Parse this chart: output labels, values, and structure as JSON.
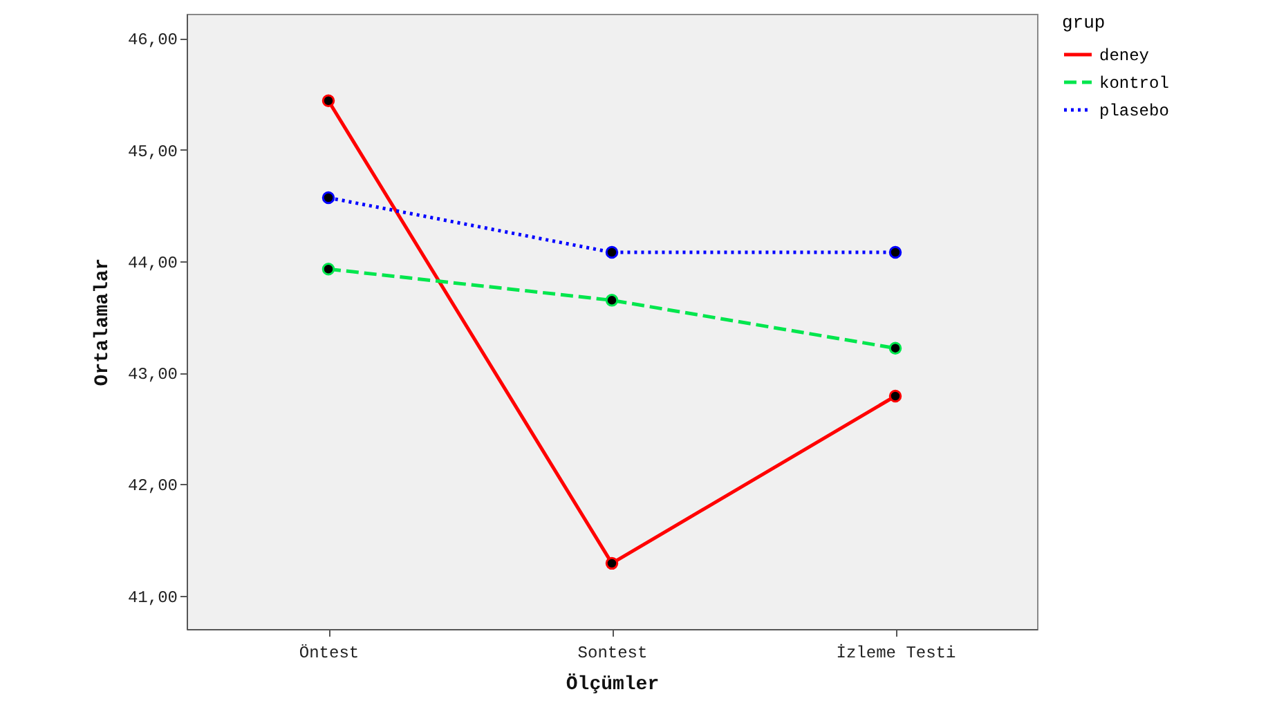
{
  "chart_data": {
    "type": "line",
    "xlabel": "Ölçümler",
    "ylabel": "Ortalamalar",
    "legend_title": "grup",
    "categories": [
      "Öntest",
      "Sontest",
      "İzleme Testi"
    ],
    "series": [
      {
        "name": "deney",
        "color": "#ff0000",
        "line_style": "solid",
        "values": [
          45.44,
          41.29,
          42.79
        ]
      },
      {
        "name": "kontrol",
        "color": "#00e64d",
        "line_style": "dashed",
        "values": [
          43.93,
          43.65,
          43.22
        ]
      },
      {
        "name": "plasebo",
        "color": "#0000ff",
        "line_style": "dotted",
        "values": [
          44.57,
          44.08,
          44.08
        ]
      }
    ],
    "ylim": [
      40.7,
      46.22
    ],
    "yticks": [
      {
        "value": 41,
        "label": "41,00"
      },
      {
        "value": 42,
        "label": "42,00"
      },
      {
        "value": 43,
        "label": "43,00"
      },
      {
        "value": 44,
        "label": "44,00"
      },
      {
        "value": 45,
        "label": "45,00"
      },
      {
        "value": 46,
        "label": "46,00"
      }
    ],
    "marker": "circle",
    "legend": "top right",
    "grid": false
  }
}
